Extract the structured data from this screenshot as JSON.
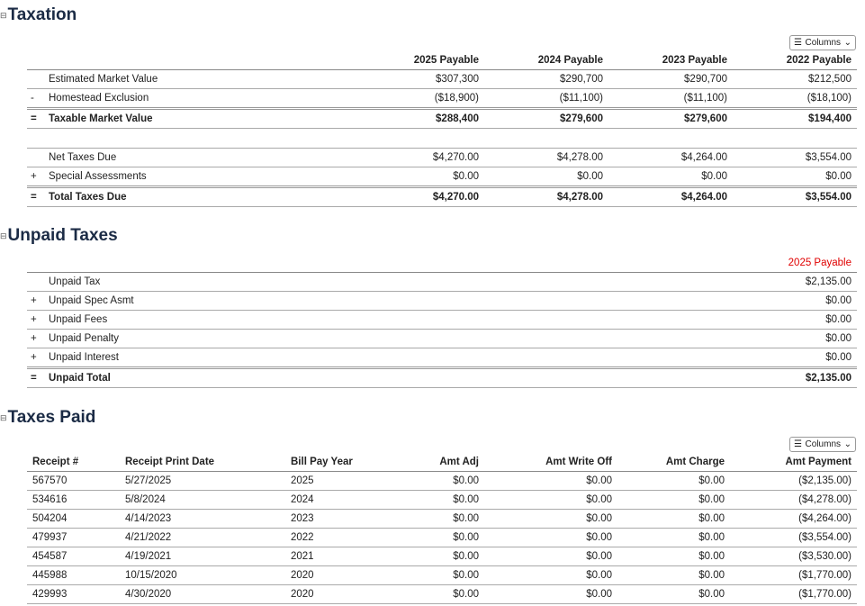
{
  "taxation": {
    "title": "Taxation",
    "columns_label": "Columns",
    "headers": [
      "2025 Payable",
      "2024 Payable",
      "2023 Payable",
      "2022 Payable"
    ],
    "rows1": [
      {
        "sign": "",
        "label": "Estimated Market Value",
        "values": [
          "$307,300",
          "$290,700",
          "$290,700",
          "$212,500"
        ]
      },
      {
        "sign": "-",
        "label": "Homestead Exclusion",
        "values": [
          "($18,900)",
          "($11,100)",
          "($11,100)",
          "($18,100)"
        ]
      },
      {
        "sign": "=",
        "label": "Taxable Market Value",
        "values": [
          "$288,400",
          "$279,600",
          "$279,600",
          "$194,400"
        ]
      }
    ],
    "rows2": [
      {
        "sign": "",
        "label": "Net Taxes Due",
        "values": [
          "$4,270.00",
          "$4,278.00",
          "$4,264.00",
          "$3,554.00"
        ]
      },
      {
        "sign": "+",
        "label": "Special Assessments",
        "values": [
          "$0.00",
          "$0.00",
          "$0.00",
          "$0.00"
        ]
      },
      {
        "sign": "=",
        "label": "Total Taxes Due",
        "values": [
          "$4,270.00",
          "$4,278.00",
          "$4,264.00",
          "$3,554.00"
        ]
      }
    ]
  },
  "unpaid": {
    "title": "Unpaid Taxes",
    "header": "2025 Payable",
    "header_color": "#e00000",
    "rows": [
      {
        "sign": "",
        "label": "Unpaid Tax",
        "value": "$2,135.00"
      },
      {
        "sign": "+",
        "label": "Unpaid Spec Asmt",
        "value": "$0.00"
      },
      {
        "sign": "+",
        "label": "Unpaid Fees",
        "value": "$0.00"
      },
      {
        "sign": "+",
        "label": "Unpaid Penalty",
        "value": "$0.00"
      },
      {
        "sign": "+",
        "label": "Unpaid Interest",
        "value": "$0.00"
      },
      {
        "sign": "=",
        "label": "Unpaid Total",
        "value": "$2,135.00"
      }
    ]
  },
  "paid": {
    "title": "Taxes Paid",
    "columns_label": "Columns",
    "headers": [
      "Receipt #",
      "Receipt Print Date",
      "Bill Pay Year",
      "Amt Adj",
      "Amt Write Off",
      "Amt Charge",
      "Amt Payment"
    ],
    "rows": [
      [
        "567570",
        "5/27/2025",
        "2025",
        "$0.00",
        "$0.00",
        "$0.00",
        "($2,135.00)"
      ],
      [
        "534616",
        "5/8/2024",
        "2024",
        "$0.00",
        "$0.00",
        "$0.00",
        "($4,278.00)"
      ],
      [
        "504204",
        "4/14/2023",
        "2023",
        "$0.00",
        "$0.00",
        "$0.00",
        "($4,264.00)"
      ],
      [
        "479937",
        "4/21/2022",
        "2022",
        "$0.00",
        "$0.00",
        "$0.00",
        "($3,554.00)"
      ],
      [
        "454587",
        "4/19/2021",
        "2021",
        "$0.00",
        "$0.00",
        "$0.00",
        "($3,530.00)"
      ],
      [
        "445988",
        "10/15/2020",
        "2020",
        "$0.00",
        "$0.00",
        "$0.00",
        "($1,770.00)"
      ],
      [
        "429993",
        "4/30/2020",
        "2020",
        "$0.00",
        "$0.00",
        "$0.00",
        "($1,770.00)"
      ]
    ]
  }
}
